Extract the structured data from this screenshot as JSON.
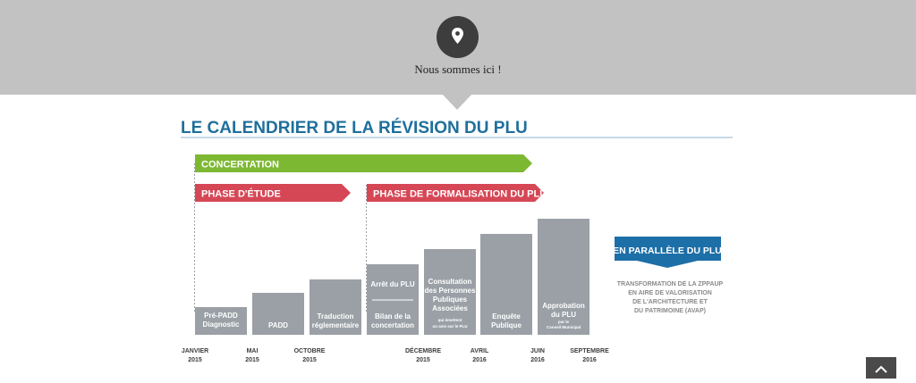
{
  "header": {
    "location_text": "Nous sommes ici !",
    "pin_icon": "map-marker-icon",
    "band_color": "#c2c2c2"
  },
  "infographic": {
    "title": "LE CALENDRIER DE LA RÉVISION DU PLU",
    "title_color": "#1f6f9c",
    "phases": {
      "concertation": "CONCERTATION",
      "etude": "PHASE D'ÉTUDE",
      "formalisation": "PHASE DE FORMALISATION DU PLU"
    },
    "colors": {
      "green": "#7db833",
      "red": "#d64756",
      "bar": "#9aa0a6",
      "blue": "#1d6fa8"
    },
    "bars": [
      {
        "lines": [
          "Pré-PADD",
          "Diagnostic"
        ]
      },
      {
        "lines": [
          "PADD"
        ]
      },
      {
        "lines": [
          "Traduction",
          "réglementaire"
        ]
      },
      {
        "top_lines": [
          "Arrêt du PLU"
        ],
        "lines": [
          "Bilan de la",
          "concertation"
        ]
      },
      {
        "lines": [
          "Consultation",
          "des Personnes",
          "Publiques",
          "Associées"
        ],
        "small_lines": [
          "qui émettent",
          "un avis sur le PLU"
        ]
      },
      {
        "lines": [
          "Enquête",
          "Publique"
        ]
      },
      {
        "lines": [
          "Approbation",
          "du PLU"
        ],
        "small_lines": [
          "par le",
          "Conseil Municipal"
        ]
      }
    ],
    "dates": [
      {
        "month": "JANVIER",
        "year": "2015"
      },
      {
        "month": "MAI",
        "year": "2015"
      },
      {
        "month": "OCTOBRE",
        "year": "2015"
      },
      {
        "month": "DÉCEMBRE",
        "year": "2015"
      },
      {
        "month": "AVRIL",
        "year": "2016"
      },
      {
        "month": "JUIN",
        "year": "2016"
      },
      {
        "month": "SEPTEMBRE",
        "year": "2016"
      }
    ],
    "parallel": {
      "label": "EN PARALLÈLE DU PLU",
      "lines": [
        "TRANSFORMATION DE LA ZPPAUP",
        "EN AIRE DE VALORISATION",
        "DE L'ARCHITECTURE ET",
        "DU PATRIMOINE (AVAP)"
      ]
    }
  },
  "scroll_top_icon": "chevron-up-icon"
}
